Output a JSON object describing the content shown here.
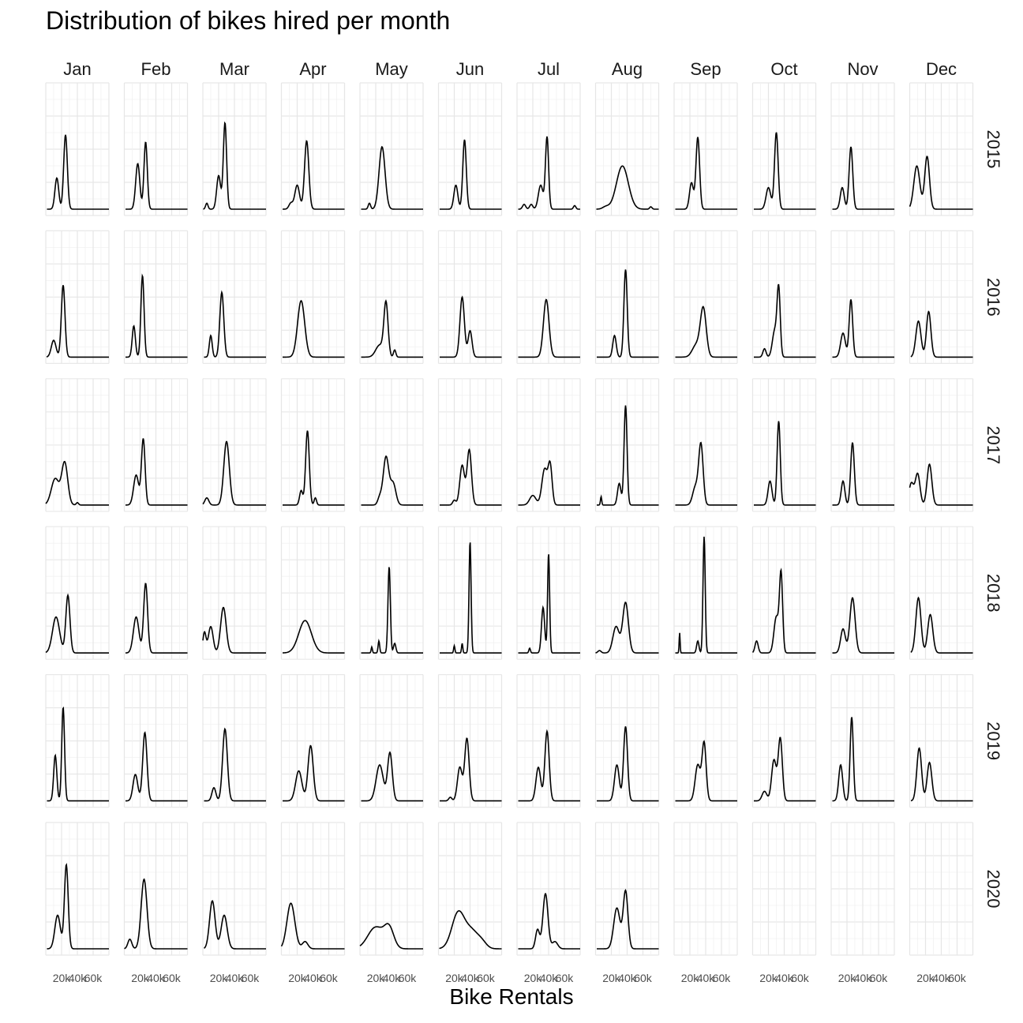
{
  "chart_data": {
    "type": "line",
    "title": "Distribution of bikes hired per month",
    "xlabel": "Bike Rentals",
    "ylabel": "",
    "facet_cols": [
      "Jan",
      "Feb",
      "Mar",
      "Apr",
      "May",
      "Jun",
      "Jul",
      "Aug",
      "Sep",
      "Oct",
      "Nov",
      "Dec"
    ],
    "facet_rows": [
      "2015",
      "2016",
      "2017",
      "2018",
      "2019",
      "2020"
    ],
    "x_ticks": [
      {
        "value": 20000,
        "label": "20k"
      },
      {
        "value": 40000,
        "label": "40k"
      },
      {
        "value": 60000,
        "label": "60k"
      }
    ],
    "xlim": [
      0,
      80000
    ],
    "ylim": [
      0,
      1
    ],
    "grid": true,
    "density_peaks": [
      [
        [
          [
            14000,
            0.26,
            2400
          ],
          [
            25000,
            0.62,
            2300
          ]
        ],
        [
          [
            17000,
            0.38,
            2600
          ],
          [
            27000,
            0.56,
            2100
          ]
        ],
        [
          [
            5000,
            0.05,
            1500
          ],
          [
            20000,
            0.28,
            2500
          ],
          [
            28000,
            0.72,
            2100
          ]
        ],
        [
          [
            12000,
            0.05,
            2500
          ],
          [
            20000,
            0.2,
            3000
          ],
          [
            32000,
            0.57,
            2700
          ]
        ],
        [
          [
            12000,
            0.05,
            1500
          ],
          [
            28000,
            0.52,
            3800
          ]
        ],
        [
          [
            22000,
            0.2,
            2500
          ],
          [
            33000,
            0.58,
            2200
          ]
        ],
        [
          [
            9000,
            0.04,
            2000
          ],
          [
            18000,
            0.04,
            2000
          ],
          [
            30000,
            0.2,
            3000
          ],
          [
            38000,
            0.6,
            2000
          ],
          [
            73000,
            0.03,
            1500
          ]
        ],
        [
          [
            13000,
            0.02,
            4000
          ],
          [
            34000,
            0.36,
            7500
          ],
          [
            70000,
            0.02,
            1500
          ]
        ],
        [
          [
            22000,
            0.22,
            2500
          ],
          [
            30000,
            0.6,
            2300
          ]
        ],
        [
          [
            20000,
            0.18,
            3000
          ],
          [
            30000,
            0.64,
            2300
          ]
        ],
        [
          [
            14000,
            0.18,
            2500
          ],
          [
            25000,
            0.52,
            2300
          ]
        ],
        [
          [
            9000,
            0.36,
            3800
          ],
          [
            22000,
            0.44,
            3000
          ]
        ]
      ],
      [
        [
          [
            10000,
            0.14,
            3000
          ],
          [
            22000,
            0.6,
            2300
          ]
        ],
        [
          [
            12000,
            0.26,
            2000
          ],
          [
            23000,
            0.68,
            2000
          ]
        ],
        [
          [
            10000,
            0.18,
            1800
          ],
          [
            24000,
            0.54,
            2500
          ]
        ],
        [
          [
            25000,
            0.47,
            4500
          ]
        ],
        [
          [
            25000,
            0.1,
            5000
          ],
          [
            33000,
            0.44,
            2600
          ],
          [
            44000,
            0.06,
            1500
          ]
        ],
        [
          [
            30000,
            0.5,
            2800
          ],
          [
            40000,
            0.22,
            2500
          ]
        ],
        [
          [
            37000,
            0.48,
            3500
          ]
        ],
        [
          [
            24000,
            0.18,
            2200
          ],
          [
            38000,
            0.73,
            2100
          ]
        ],
        [
          [
            28000,
            0.1,
            5000
          ],
          [
            37000,
            0.4,
            3700
          ]
        ],
        [
          [
            15000,
            0.07,
            2000
          ],
          [
            28000,
            0.22,
            3000
          ],
          [
            33000,
            0.55,
            2000
          ]
        ],
        [
          [
            15000,
            0.2,
            3000
          ],
          [
            25000,
            0.48,
            2200
          ]
        ],
        [
          [
            11000,
            0.3,
            3200
          ],
          [
            24000,
            0.38,
            2800
          ]
        ]
      ],
      [
        [
          [
            12000,
            0.22,
            5000
          ],
          [
            24000,
            0.35,
            3800
          ],
          [
            40000,
            0.02,
            1500
          ]
        ],
        [
          [
            15000,
            0.25,
            3200
          ],
          [
            24000,
            0.55,
            2300
          ]
        ],
        [
          [
            5000,
            0.06,
            2500
          ],
          [
            30000,
            0.53,
            3500
          ]
        ],
        [
          [
            25000,
            0.12,
            2000
          ],
          [
            33000,
            0.62,
            2300
          ],
          [
            43000,
            0.06,
            1500
          ]
        ],
        [
          [
            25000,
            0.06,
            2500
          ],
          [
            33000,
            0.4,
            3500
          ],
          [
            42000,
            0.18,
            3500
          ]
        ],
        [
          [
            20000,
            0.04,
            2000
          ],
          [
            30000,
            0.33,
            3000
          ],
          [
            39000,
            0.46,
            2800
          ]
        ],
        [
          [
            20000,
            0.08,
            4000
          ],
          [
            35000,
            0.3,
            3500
          ],
          [
            42000,
            0.32,
            2500
          ]
        ],
        [
          [
            7000,
            0.07,
            800
          ],
          [
            30000,
            0.18,
            2200
          ],
          [
            38000,
            0.83,
            1900
          ]
        ],
        [
          [
            27000,
            0.15,
            3500
          ],
          [
            34000,
            0.5,
            2800
          ]
        ],
        [
          [
            22000,
            0.2,
            2500
          ],
          [
            33000,
            0.7,
            2000
          ]
        ],
        [
          [
            15000,
            0.2,
            2300
          ],
          [
            27000,
            0.52,
            2300
          ]
        ],
        [
          [
            2000,
            0.18,
            3000
          ],
          [
            10000,
            0.26,
            3000
          ],
          [
            25000,
            0.34,
            3000
          ]
        ]
      ],
      [
        [
          [
            13000,
            0.3,
            4500
          ],
          [
            28000,
            0.48,
            2600
          ]
        ],
        [
          [
            15000,
            0.3,
            3500
          ],
          [
            27000,
            0.58,
            2500
          ]
        ],
        [
          [
            2000,
            0.17,
            2000
          ],
          [
            10000,
            0.22,
            3000
          ],
          [
            26000,
            0.38,
            3500
          ]
        ],
        [
          [
            30000,
            0.27,
            8000
          ]
        ],
        [
          [
            15000,
            0.05,
            800
          ],
          [
            24000,
            0.1,
            1000
          ],
          [
            37000,
            0.72,
            1500
          ],
          [
            44000,
            0.08,
            1500
          ]
        ],
        [
          [
            20000,
            0.06,
            800
          ],
          [
            30000,
            0.08,
            800
          ],
          [
            40000,
            0.93,
            1300
          ]
        ],
        [
          [
            16000,
            0.04,
            1000
          ],
          [
            33000,
            0.38,
            2000
          ],
          [
            40000,
            0.83,
            1300
          ]
        ],
        [
          [
            5000,
            0.02,
            2000
          ],
          [
            26000,
            0.22,
            4000
          ],
          [
            38000,
            0.42,
            3600
          ]
        ],
        [
          [
            7000,
            0.17,
            600
          ],
          [
            30000,
            0.1,
            1500
          ],
          [
            38000,
            0.97,
            1400
          ]
        ],
        [
          [
            5000,
            0.1,
            2000
          ],
          [
            30000,
            0.3,
            3000
          ],
          [
            36000,
            0.65,
            2000
          ]
        ],
        [
          [
            15000,
            0.2,
            3000
          ],
          [
            27000,
            0.46,
            3300
          ]
        ],
        [
          [
            11000,
            0.46,
            3200
          ],
          [
            26000,
            0.32,
            3200
          ]
        ]
      ],
      [
        [
          [
            12000,
            0.38,
            2000
          ],
          [
            22000,
            0.78,
            1800
          ]
        ],
        [
          [
            14000,
            0.22,
            3000
          ],
          [
            26000,
            0.57,
            2700
          ]
        ],
        [
          [
            14000,
            0.11,
            2500
          ],
          [
            28000,
            0.6,
            3000
          ]
        ],
        [
          [
            22000,
            0.25,
            4000
          ],
          [
            37000,
            0.46,
            3300
          ]
        ],
        [
          [
            25000,
            0.3,
            4500
          ],
          [
            38000,
            0.4,
            3000
          ]
        ],
        [
          [
            15000,
            0.03,
            2000
          ],
          [
            27000,
            0.28,
            3000
          ],
          [
            36000,
            0.52,
            2800
          ]
        ],
        [
          [
            27000,
            0.28,
            3000
          ],
          [
            38000,
            0.58,
            2700
          ]
        ],
        [
          [
            27000,
            0.3,
            3000
          ],
          [
            38000,
            0.62,
            2500
          ]
        ],
        [
          [
            30000,
            0.3,
            3300
          ],
          [
            38000,
            0.48,
            2600
          ]
        ],
        [
          [
            15000,
            0.08,
            3000
          ],
          [
            27000,
            0.34,
            3000
          ],
          [
            35000,
            0.52,
            2600
          ]
        ],
        [
          [
            12000,
            0.3,
            2500
          ],
          [
            26000,
            0.7,
            2000
          ]
        ],
        [
          [
            12000,
            0.44,
            3000
          ],
          [
            25000,
            0.32,
            3000
          ]
        ]
      ],
      [
        [
          [
            15000,
            0.28,
            3500
          ],
          [
            26000,
            0.7,
            2400
          ]
        ],
        [
          [
            7000,
            0.08,
            2500
          ],
          [
            25000,
            0.58,
            3700
          ]
        ],
        [
          [
            12000,
            0.4,
            3500
          ],
          [
            27000,
            0.28,
            3800
          ]
        ],
        [
          [
            12000,
            0.38,
            5000
          ],
          [
            30000,
            0.06,
            3500
          ]
        ],
        [
          [
            20000,
            0.18,
            10000
          ],
          [
            37000,
            0.16,
            6000
          ]
        ],
        [
          [
            25000,
            0.3,
            8000
          ],
          [
            42000,
            0.14,
            8000
          ],
          [
            55000,
            0.05,
            6000
          ]
        ],
        [
          [
            26000,
            0.16,
            2500
          ],
          [
            36000,
            0.46,
            3200
          ],
          [
            48000,
            0.06,
            3500
          ]
        ],
        [
          [
            27000,
            0.34,
            4000
          ],
          [
            38000,
            0.48,
            3000
          ]
        ],
        null,
        null,
        null,
        null
      ]
    ]
  }
}
